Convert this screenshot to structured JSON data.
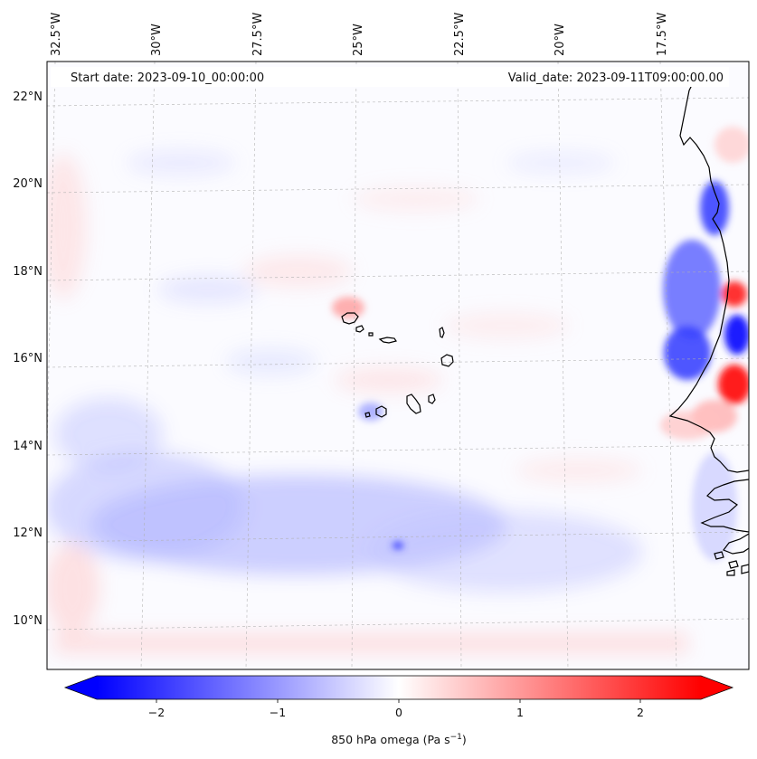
{
  "map": {
    "start_date": "Start date: 2023-09-10_00:00:00",
    "valid_date": "Valid_date: 2023-09-11T09:00:00.00",
    "variable": "850 hPa omega",
    "lon_labels": [
      "32.5°W",
      "30°W",
      "27.5°W",
      "25°W",
      "22.5°W",
      "20°W",
      "17.5°W"
    ],
    "lat_labels": [
      "22°N",
      "20°N",
      "18°N",
      "16°N",
      "14°N",
      "12°N",
      "10°N"
    ],
    "colors": {
      "negative": "#0000ff",
      "zero": "#ffffff",
      "positive": "#ff0000",
      "coast": "#000000",
      "grid": "#b0b0b0"
    }
  },
  "colorbar": {
    "ticks": [
      "−2",
      "−1",
      "0",
      "1",
      "2"
    ],
    "label_text": "850 hPa omega (Pa s",
    "label_unit_exp": "−1",
    "label_close": ")",
    "range": [
      -2.6,
      2.6
    ]
  }
}
